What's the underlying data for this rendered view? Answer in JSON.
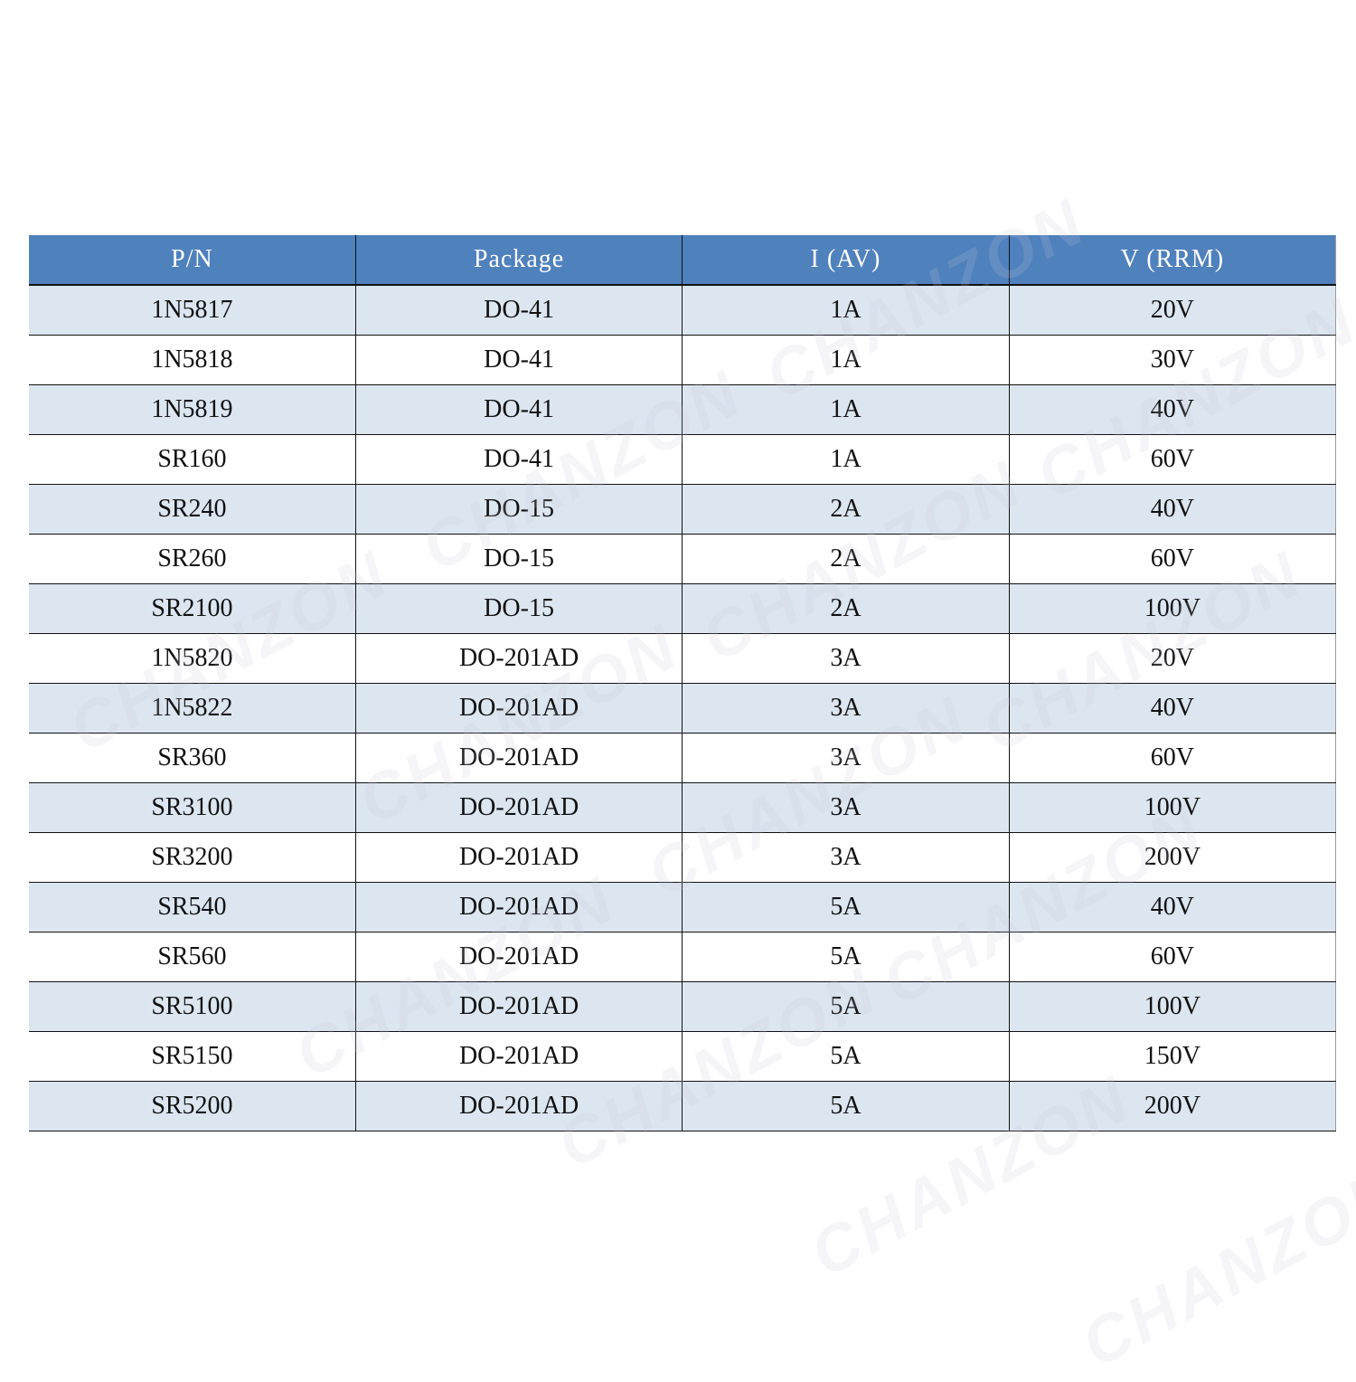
{
  "table": {
    "headers": [
      "P/N",
      "Package",
      "I (AV)",
      "V (RRM)"
    ],
    "rows": [
      [
        "1N5817",
        "DO-41",
        "1A",
        "20V"
      ],
      [
        "1N5818",
        "DO-41",
        "1A",
        "30V"
      ],
      [
        "1N5819",
        "DO-41",
        "1A",
        "40V"
      ],
      [
        "SR160",
        "DO-41",
        "1A",
        "60V"
      ],
      [
        "SR240",
        "DO-15",
        "2A",
        "40V"
      ],
      [
        "SR260",
        "DO-15",
        "2A",
        "60V"
      ],
      [
        "SR2100",
        "DO-15",
        "2A",
        "100V"
      ],
      [
        "1N5820",
        "DO-201AD",
        "3A",
        "20V"
      ],
      [
        "1N5822",
        "DO-201AD",
        "3A",
        "40V"
      ],
      [
        "SR360",
        "DO-201AD",
        "3A",
        "60V"
      ],
      [
        "SR3100",
        "DO-201AD",
        "3A",
        "100V"
      ],
      [
        "SR3200",
        "DO-201AD",
        "3A",
        "200V"
      ],
      [
        "SR540",
        "DO-201AD",
        "5A",
        "40V"
      ],
      [
        "SR560",
        "DO-201AD",
        "5A",
        "60V"
      ],
      [
        "SR5100",
        "DO-201AD",
        "5A",
        "100V"
      ],
      [
        "SR5150",
        "DO-201AD",
        "5A",
        "150V"
      ],
      [
        "SR5200",
        "DO-201AD",
        "5A",
        "200V"
      ]
    ]
  },
  "watermark": "CHANZON",
  "colors": {
    "header_bg": "#4f81bd",
    "row_alt_bg": "#dce6f1"
  }
}
